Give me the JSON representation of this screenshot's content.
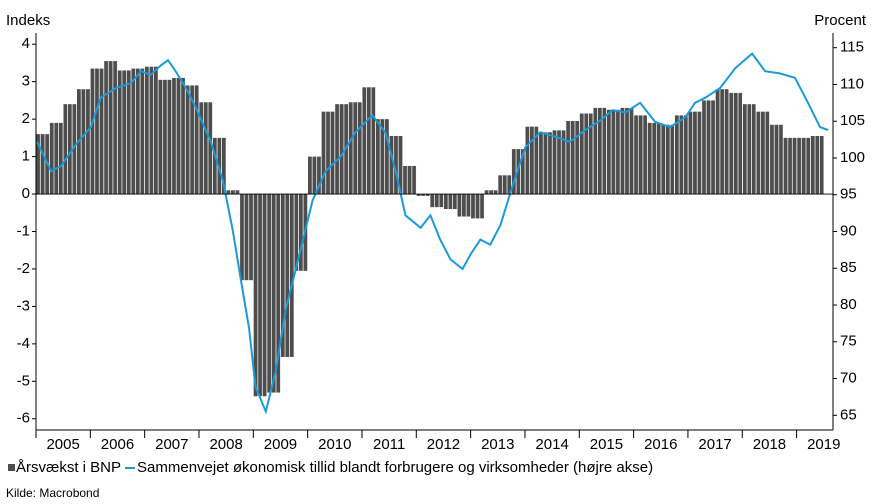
{
  "chart_data": {
    "type": "bar",
    "y_label": "Indeks",
    "y2_label": "Procent",
    "source": "Kilde: Macrobond",
    "xlim": [
      2005,
      2019.67
    ],
    "xticks": [
      2005,
      2006,
      2007,
      2008,
      2009,
      2010,
      2011,
      2012,
      2013,
      2014,
      2015,
      2016,
      2017,
      2018,
      2019
    ],
    "ylim": [
      -6.3,
      4.3
    ],
    "yticks": [
      -6,
      -5,
      -4,
      -3,
      -2,
      -1,
      0,
      1,
      2,
      3,
      4
    ],
    "y2lim": [
      63,
      117
    ],
    "y2ticks": [
      65,
      70,
      75,
      80,
      85,
      90,
      95,
      100,
      105,
      110,
      115
    ],
    "series": [
      {
        "name": "Årsvækst i BNP",
        "type": "bar",
        "color": "#4d4d4d",
        "x": [
          2005.125,
          2005.375,
          2005.625,
          2005.875,
          2006.125,
          2006.375,
          2006.625,
          2006.875,
          2007.125,
          2007.375,
          2007.625,
          2007.875,
          2008.125,
          2008.375,
          2008.625,
          2008.875,
          2009.125,
          2009.375,
          2009.625,
          2009.875,
          2010.125,
          2010.375,
          2010.625,
          2010.875,
          2011.125,
          2011.375,
          2011.625,
          2011.875,
          2012.125,
          2012.375,
          2012.625,
          2012.875,
          2013.125,
          2013.375,
          2013.625,
          2013.875,
          2014.125,
          2014.375,
          2014.625,
          2014.875,
          2015.125,
          2015.375,
          2015.625,
          2015.875,
          2016.125,
          2016.375,
          2016.625,
          2016.875,
          2017.125,
          2017.375,
          2017.625,
          2017.875,
          2018.125,
          2018.375,
          2018.625,
          2018.875,
          2019.125,
          2019.375
        ],
        "values": [
          1.6,
          1.9,
          2.4,
          2.8,
          3.35,
          3.55,
          3.3,
          3.35,
          3.4,
          3.05,
          3.1,
          2.9,
          2.45,
          1.5,
          0.1,
          -2.3,
          -5.4,
          -5.3,
          -4.35,
          -2.05,
          1.0,
          2.2,
          2.4,
          2.45,
          2.85,
          2.0,
          1.55,
          0.75,
          -0.05,
          -0.35,
          -0.4,
          -0.6,
          -0.65,
          0.1,
          0.5,
          1.2,
          1.8,
          1.65,
          1.7,
          1.95,
          2.15,
          2.3,
          2.25,
          2.3,
          2.1,
          1.9,
          1.85,
          2.1,
          2.2,
          2.5,
          2.8,
          2.7,
          2.4,
          2.2,
          1.85,
          1.5,
          1.5,
          1.55
        ]
      },
      {
        "name": "Sammenvejet økonomisk tillid blandt forbrugere og virksomheder (højre akse)",
        "type": "line",
        "axis": "y2",
        "color": "#1a9bd7",
        "x": [
          2005.02,
          2005.28,
          2005.46,
          2005.74,
          2006.01,
          2006.19,
          2006.47,
          2006.75,
          2006.93,
          2007.11,
          2007.3,
          2007.43,
          2007.57,
          2007.76,
          2007.94,
          2008.22,
          2008.44,
          2008.62,
          2008.77,
          2008.92,
          2009.04,
          2009.23,
          2009.41,
          2009.6,
          2009.87,
          2010.09,
          2010.33,
          2010.61,
          2010.88,
          2011.19,
          2011.43,
          2011.62,
          2011.8,
          2012.08,
          2012.26,
          2012.44,
          2012.63,
          2012.85,
          2013.0,
          2013.18,
          2013.36,
          2013.55,
          2013.77,
          2014.01,
          2014.28,
          2014.56,
          2014.83,
          2015.11,
          2015.39,
          2015.61,
          2015.85,
          2016.12,
          2016.4,
          2016.67,
          2016.95,
          2017.13,
          2017.32,
          2017.59,
          2017.87,
          2018.18,
          2018.42,
          2018.69,
          2018.97,
          2019.21,
          2019.43,
          2019.58
        ],
        "values": [
          102.2,
          98.2,
          98.9,
          101.9,
          104.2,
          108.2,
          109.5,
          110.2,
          111.8,
          111.3,
          112.6,
          113.3,
          111.8,
          109.5,
          106.9,
          102.2,
          96.9,
          90.2,
          83.5,
          76.9,
          68.9,
          65.5,
          70.9,
          79.5,
          87.5,
          94.2,
          98.2,
          100.2,
          103.5,
          105.8,
          103.5,
          98.2,
          92.2,
          90.5,
          92.2,
          88.9,
          86.2,
          84.9,
          86.9,
          88.9,
          88.2,
          90.9,
          96.2,
          101.5,
          103.5,
          102.9,
          102.2,
          103.8,
          105.1,
          106.5,
          106.2,
          107.5,
          104.9,
          104.2,
          105.5,
          107.5,
          108.2,
          109.5,
          112.2,
          114.2,
          111.8,
          111.5,
          110.9,
          107.5,
          104.2,
          103.8
        ]
      }
    ]
  }
}
